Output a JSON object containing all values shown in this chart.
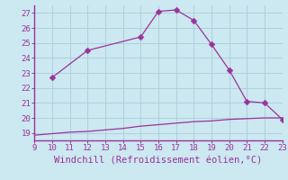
{
  "xlabel": "Windchill (Refroidissement éolien,°C)",
  "bg_color": "#cce8f0",
  "grid_color": "#aaccdd",
  "line_color": "#993399",
  "spine_color": "#993399",
  "xlim": [
    9,
    23
  ],
  "ylim": [
    18.5,
    27.5
  ],
  "xticks": [
    9,
    10,
    11,
    12,
    13,
    14,
    15,
    16,
    17,
    18,
    19,
    20,
    21,
    22,
    23
  ],
  "yticks": [
    19,
    20,
    21,
    22,
    23,
    24,
    25,
    26,
    27
  ],
  "upper_x": [
    10,
    12,
    15,
    16,
    17,
    18,
    19,
    20,
    21,
    22,
    23
  ],
  "upper_y": [
    22.7,
    24.5,
    25.4,
    27.1,
    27.2,
    26.5,
    24.9,
    23.2,
    21.1,
    21.0,
    19.9
  ],
  "lower_x": [
    9,
    10,
    11,
    12,
    13,
    14,
    15,
    16,
    17,
    18,
    19,
    20,
    21,
    22,
    23
  ],
  "lower_y": [
    18.85,
    18.95,
    19.05,
    19.1,
    19.2,
    19.3,
    19.45,
    19.55,
    19.65,
    19.75,
    19.8,
    19.9,
    19.95,
    20.0,
    20.0
  ],
  "tick_fontsize": 6.5,
  "xlabel_fontsize": 7.5,
  "marker_size": 3.5,
  "line_width": 0.9
}
